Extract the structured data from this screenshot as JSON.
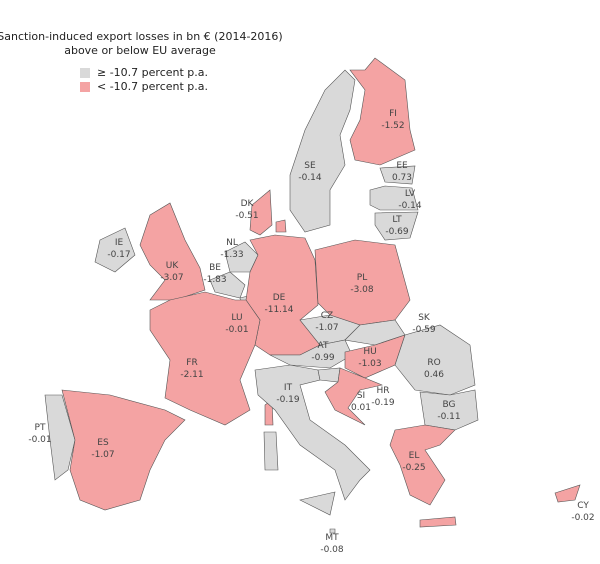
{
  "title_line1": "Sanction-induced export losses in bn € (2014-2016)",
  "title_line2": "above or below EU average",
  "legend": [
    {
      "label": "≥  -10.7 percent p.a.",
      "color": "#d9d9d9"
    },
    {
      "label": "<  -10.7 percent p.a.",
      "color": "#f4a3a3"
    }
  ],
  "countries": [
    {
      "code": "FI",
      "value": -1.52,
      "group": 1
    },
    {
      "code": "SE",
      "value": -0.14,
      "group": 0
    },
    {
      "code": "EE",
      "value": 0.73,
      "group": 0
    },
    {
      "code": "LV",
      "value": -0.14,
      "group": 0
    },
    {
      "code": "LT",
      "value": -0.69,
      "group": 0
    },
    {
      "code": "DK",
      "value": -0.51,
      "group": 1
    },
    {
      "code": "IE",
      "value": -0.17,
      "group": 0
    },
    {
      "code": "UK",
      "value": -3.07,
      "group": 1
    },
    {
      "code": "NL",
      "value": -1.33,
      "group": 0
    },
    {
      "code": "BE",
      "value": -1.83,
      "group": 0
    },
    {
      "code": "LU",
      "value": -0.01,
      "group": 0
    },
    {
      "code": "DE",
      "value": -11.14,
      "group": 1
    },
    {
      "code": "PL",
      "value": -3.08,
      "group": 1
    },
    {
      "code": "CZ",
      "value": -1.07,
      "group": 0
    },
    {
      "code": "SK",
      "value": -0.59,
      "group": 0
    },
    {
      "code": "AT",
      "value": -0.99,
      "group": 0
    },
    {
      "code": "HU",
      "value": -1.03,
      "group": 1
    },
    {
      "code": "RO",
      "value": 0.46,
      "group": 0
    },
    {
      "code": "FR",
      "value": -2.11,
      "group": 1
    },
    {
      "code": "IT",
      "value": -0.19,
      "group": 0
    },
    {
      "code": "SI",
      "value": 0.01,
      "group": 0
    },
    {
      "code": "HR",
      "value": -0.19,
      "group": 1
    },
    {
      "code": "BG",
      "value": -0.11,
      "group": 0
    },
    {
      "code": "PT",
      "value": -0.01,
      "group": 0
    },
    {
      "code": "ES",
      "value": -1.07,
      "group": 1
    },
    {
      "code": "EL",
      "value": -0.25,
      "group": 1
    },
    {
      "code": "CY",
      "value": -0.02,
      "group": 1
    },
    {
      "code": "MT",
      "value": -0.08,
      "group": 0
    }
  ]
}
